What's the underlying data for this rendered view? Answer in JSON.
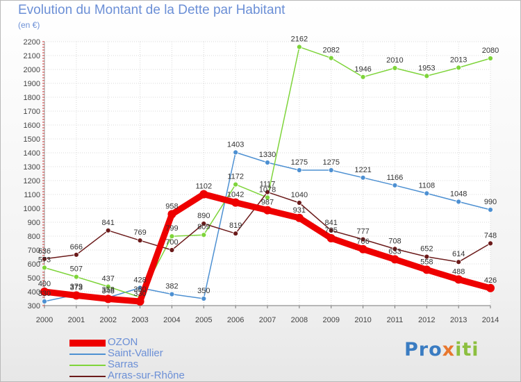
{
  "page": {
    "title": "Evolution du Montant de la Dette par Habitant",
    "unit": "(en €)",
    "brand": [
      "Pro",
      "x",
      "iti"
    ]
  },
  "chart_data": {
    "type": "line",
    "title": "Evolution du Montant de la Dette par Habitant",
    "ylabel": "(en €)",
    "xlabel": "",
    "x": [
      2000,
      2001,
      2002,
      2003,
      2004,
      2005,
      2006,
      2007,
      2008,
      2009,
      2010,
      2011,
      2012,
      2013,
      2014
    ],
    "ylim": [
      300,
      2200
    ],
    "yticks": [
      300,
      400,
      500,
      600,
      700,
      800,
      900,
      1000,
      1100,
      1200,
      1300,
      1400,
      1500,
      1600,
      1700,
      1800,
      1900,
      2000,
      2100,
      2200
    ],
    "grid": true,
    "legend_position": "bottom-left",
    "series": [
      {
        "name": "OZON",
        "color": "#ee0000",
        "values": [
          400,
          373,
          348,
          330,
          958,
          1102,
          1042,
          987,
          931,
          785,
          706,
          633,
          558,
          488,
          426
        ]
      },
      {
        "name": "Saint-Vallier",
        "color": "#4d90d2",
        "values": [
          330,
          379,
          358,
          428,
          382,
          350,
          1403,
          1330,
          1275,
          1275,
          1221,
          1166,
          1108,
          1048,
          990
        ]
      },
      {
        "name": "Sarras",
        "color": "#7ed43a",
        "values": [
          573,
          507,
          437,
          360,
          799,
          809,
          1172,
          1078,
          2162,
          2082,
          1946,
          2010,
          1953,
          2013,
          2080
        ]
      },
      {
        "name": "Arras-sur-Rhône",
        "color": "#6b1a1a",
        "values": [
          636,
          666,
          841,
          769,
          700,
          890,
          819,
          1117,
          1040,
          841,
          777,
          708,
          652,
          614,
          748
        ]
      }
    ]
  }
}
